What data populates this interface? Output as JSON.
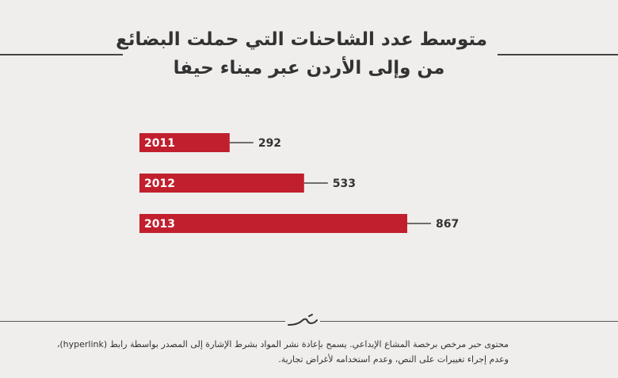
{
  "title_lines": [
    "متوسط عدد الشاحنات التي حملت البضائع",
    "من وإلى الأردن عبر ميناء حيفا"
  ],
  "chart_data": {
    "type": "bar",
    "orientation": "horizontal",
    "categories": [
      "2011",
      "2012",
      "2013"
    ],
    "values": [
      292,
      533,
      867
    ],
    "title": "متوسط عدد الشاحنات التي حملت البضائع من وإلى الأردن عبر ميناء حيفا",
    "xlabel": "",
    "ylabel": "",
    "xlim": [
      0,
      867
    ],
    "grid": false,
    "legend": "none",
    "bar_color": "#c21f2e",
    "label_color": "#ffffff"
  },
  "license": {
    "line1": "محتوى حبر مرخص برخصة المشاع الإبداعي. يسمح بإعادة نشر المواد بشرط الإشارة إلى المصدر بواسطة رابط (hyperlink)،",
    "line2": "وعدم إجراء تغييرات على النص، وعدم استخدامه لأغراض تجارية."
  },
  "logo": {
    "icon": "hibr-logo-icon",
    "color": "#333333"
  }
}
